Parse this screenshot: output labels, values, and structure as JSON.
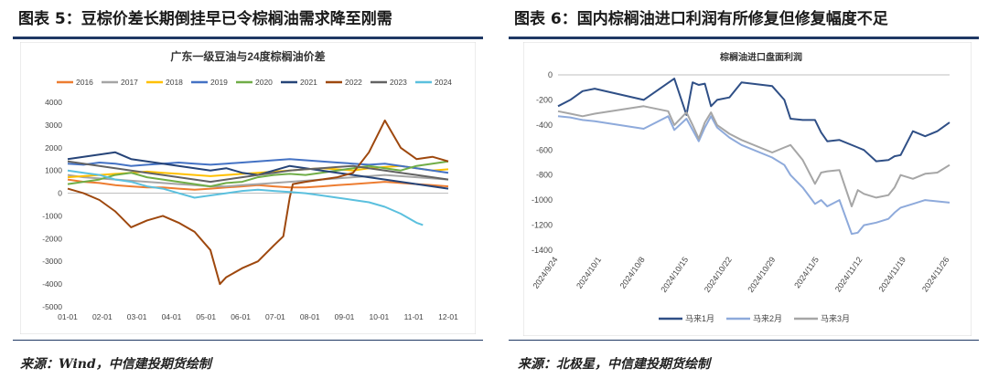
{
  "figure5": {
    "title": "图表 5：豆棕价差长期倒挂早已令棕榈油需求降至刚需",
    "source": "来源：Wind，中信建投期货绘制"
  },
  "figure6": {
    "title": "图表 6：国内棕榈油进口利润有所修复但修复幅度不足",
    "source": "来源：北极星，中信建投期货绘制"
  },
  "chart_data": [
    {
      "type": "line",
      "title": "广东一级豆油与24度棕榈油价差",
      "xlabel": "",
      "ylabel": "",
      "x_ticks": [
        "01-01",
        "02-01",
        "03-01",
        "04-01",
        "05-01",
        "06-01",
        "07-01",
        "08-01",
        "09-01",
        "10-01",
        "11-01",
        "12-01"
      ],
      "ylim": [
        -5000,
        4000
      ],
      "y_ticks": [
        "4000",
        "3000",
        "2000",
        "1000",
        "0",
        "-1000",
        "-2000",
        "-3000",
        "-4000",
        "-5000"
      ],
      "grid": false,
      "legend": "top",
      "x_domain": [
        0,
        12
      ],
      "series": [
        {
          "name": "2016",
          "color": "#ed7d31",
          "x": [
            0,
            0.5,
            1,
            1.5,
            2,
            2.5,
            3,
            3.5,
            4,
            4.5,
            5,
            5.5,
            6,
            6.5,
            7,
            7.5,
            8,
            8.5,
            9,
            9.5,
            10,
            10.5,
            11,
            11.5,
            12
          ],
          "values": [
            600,
            500,
            450,
            350,
            300,
            250,
            250,
            200,
            150,
            200,
            250,
            300,
            350,
            300,
            250,
            250,
            300,
            350,
            400,
            450,
            500,
            450,
            400,
            350,
            300
          ]
        },
        {
          "name": "2017",
          "color": "#a5a5a5",
          "x": [
            0,
            0.5,
            1,
            1.5,
            2,
            2.5,
            3,
            3.5,
            4,
            4.5,
            5,
            5.5,
            6,
            6.5,
            7,
            7.5,
            8,
            8.5,
            9,
            9.5,
            10,
            10.5,
            11,
            11.5,
            12
          ],
          "values": [
            800,
            700,
            650,
            600,
            550,
            500,
            450,
            400,
            350,
            300,
            300,
            350,
            400,
            450,
            500,
            550,
            600,
            650,
            700,
            750,
            800,
            750,
            700,
            650,
            600
          ]
        },
        {
          "name": "2018",
          "color": "#ffc000",
          "x": [
            0,
            0.5,
            1,
            1.5,
            2,
            2.5,
            3,
            3.5,
            4,
            4.5,
            5,
            5.5,
            6,
            6.5,
            7,
            7.5,
            8,
            8.5,
            9,
            9.5,
            10,
            10.5,
            11,
            11.5,
            12
          ],
          "values": [
            700,
            750,
            800,
            850,
            900,
            950,
            900,
            850,
            800,
            750,
            800,
            850,
            900,
            950,
            1000,
            1050,
            1100,
            1050,
            1000,
            1100,
            1150,
            1200,
            1100,
            1000,
            1050
          ]
        },
        {
          "name": "2019",
          "color": "#4472c4",
          "x": [
            0,
            0.5,
            1,
            1.5,
            2,
            2.5,
            3,
            3.5,
            4,
            4.5,
            5,
            5.5,
            6,
            6.5,
            7,
            7.5,
            8,
            8.5,
            9,
            9.5,
            10,
            10.5,
            11,
            11.5,
            12
          ],
          "values": [
            1300,
            1250,
            1350,
            1300,
            1200,
            1250,
            1300,
            1350,
            1300,
            1250,
            1300,
            1350,
            1400,
            1450,
            1500,
            1450,
            1400,
            1350,
            1300,
            1250,
            1300,
            1200,
            1100,
            1000,
            900
          ]
        },
        {
          "name": "2020",
          "color": "#70ad47",
          "x": [
            0,
            0.5,
            1,
            1.5,
            2,
            2.5,
            3,
            3.5,
            4,
            4.5,
            5,
            5.5,
            6,
            6.5,
            7,
            7.5,
            8,
            8.5,
            9,
            9.5,
            10,
            10.5,
            11,
            11.5,
            12
          ],
          "values": [
            400,
            500,
            600,
            800,
            900,
            700,
            600,
            500,
            400,
            300,
            450,
            500,
            700,
            800,
            850,
            800,
            900,
            1000,
            1100,
            1200,
            1100,
            1000,
            1200,
            1300,
            1400
          ]
        },
        {
          "name": "2021",
          "color": "#264478",
          "x": [
            0,
            0.5,
            1,
            1.5,
            2,
            2.5,
            3,
            3.5,
            4,
            4.5,
            5,
            5.5,
            6,
            6.5,
            7,
            7.5,
            8,
            8.5,
            9,
            9.5,
            10,
            10.5,
            11,
            11.5,
            12
          ],
          "values": [
            1500,
            1600,
            1700,
            1800,
            1500,
            1400,
            1300,
            1200,
            1100,
            1000,
            1100,
            900,
            800,
            1000,
            1200,
            1100,
            1000,
            900,
            800,
            700,
            600,
            500,
            400,
            300,
            200
          ]
        },
        {
          "name": "2022",
          "color": "#9e480e",
          "x": [
            0,
            0.5,
            1,
            1.5,
            2,
            2.5,
            3,
            3.5,
            4,
            4.5,
            4.8,
            5,
            5.5,
            6,
            6.5,
            6.8,
            7,
            7.1,
            7.5,
            8,
            8.5,
            9,
            9.5,
            10,
            10.5,
            11,
            11.5,
            12
          ],
          "values": [
            200,
            0,
            -300,
            -800,
            -1500,
            -1200,
            -1000,
            -1300,
            -1700,
            -2500,
            -4000,
            -3700,
            -3300,
            -3000,
            -2300,
            -1900,
            -200,
            400,
            500,
            600,
            700,
            900,
            1800,
            3200,
            2000,
            1500,
            1600,
            1400
          ]
        },
        {
          "name": "2023",
          "color": "#636363",
          "x": [
            0,
            0.5,
            1,
            1.5,
            2,
            2.5,
            3,
            3.5,
            4,
            4.5,
            5,
            5.5,
            6,
            6.5,
            7,
            7.5,
            8,
            8.5,
            9,
            9.5,
            10,
            10.5,
            11,
            11.5,
            12
          ],
          "values": [
            1400,
            1300,
            1200,
            1100,
            1000,
            900,
            800,
            700,
            600,
            500,
            600,
            700,
            800,
            900,
            1000,
            1050,
            1100,
            1150,
            1200,
            1100,
            1000,
            900,
            800,
            700,
            600
          ]
        },
        {
          "name": "2024",
          "color": "#5bc0de",
          "x": [
            0,
            0.5,
            1,
            1.5,
            2,
            2.5,
            3,
            3.5,
            4,
            4.5,
            5,
            5.5,
            6,
            6.5,
            7,
            7.5,
            8,
            8.5,
            9,
            9.5,
            10,
            10.5,
            11,
            11.2
          ],
          "values": [
            1000,
            900,
            800,
            600,
            500,
            300,
            200,
            0,
            -200,
            -100,
            0,
            100,
            150,
            100,
            50,
            0,
            -100,
            -200,
            -300,
            -400,
            -600,
            -900,
            -1300,
            -1400
          ]
        }
      ]
    },
    {
      "type": "line",
      "title": "棕榈油进口盘面利润",
      "xlabel": "",
      "ylabel": "",
      "x_ticks": [
        "2024/9/24",
        "2024/10/1",
        "2024/10/8",
        "2024/10/15",
        "2024/10/22",
        "2024/10/29",
        "2024/11/5",
        "2024/11/12",
        "2024/11/19",
        "2024/11/26"
      ],
      "ylim": [
        -1400,
        0
      ],
      "y_ticks": [
        "0",
        "-200",
        "-400",
        "-600",
        "-800",
        "-1000",
        "-1200",
        "-1400"
      ],
      "grid": false,
      "legend": "bottom",
      "x_domain": [
        0,
        64
      ],
      "series": [
        {
          "name": "马来1月",
          "color": "#2f4f86",
          "x": [
            0,
            2,
            4,
            6,
            14,
            19,
            21,
            22,
            23,
            24,
            25,
            26,
            28,
            30,
            35,
            37,
            38,
            40,
            42,
            43,
            44,
            46,
            49,
            50,
            52,
            54,
            55,
            56,
            58,
            60,
            62,
            64
          ],
          "values": [
            -250,
            -200,
            -130,
            -110,
            -200,
            -30,
            -320,
            -60,
            -80,
            -70,
            -250,
            -200,
            -180,
            -60,
            -90,
            -200,
            -350,
            -360,
            -360,
            -460,
            -530,
            -520,
            -580,
            -600,
            -690,
            -680,
            -650,
            -640,
            -450,
            -490,
            -450,
            -380
          ]
        },
        {
          "name": "马来2月",
          "color": "#8eaadb",
          "x": [
            0,
            2,
            4,
            6,
            14,
            18,
            19,
            21,
            22,
            23,
            24,
            25,
            26,
            28,
            30,
            35,
            37,
            38,
            40,
            42,
            43,
            44,
            46,
            48,
            49,
            50,
            52,
            54,
            55,
            56,
            58,
            60,
            62,
            64
          ],
          "values": [
            -330,
            -340,
            -360,
            -370,
            -430,
            -330,
            -440,
            -350,
            -440,
            -530,
            -420,
            -330,
            -420,
            -500,
            -560,
            -660,
            -720,
            -800,
            -900,
            -1030,
            -1000,
            -1050,
            -1000,
            -1270,
            -1260,
            -1200,
            -1180,
            -1150,
            -1100,
            -1060,
            -1030,
            -1000,
            -1010,
            -1020
          ]
        },
        {
          "name": "马来3月",
          "color": "#a6a6a6",
          "x": [
            0,
            2,
            4,
            6,
            14,
            18,
            19,
            21,
            22,
            23,
            24,
            25,
            26,
            28,
            30,
            35,
            37,
            38,
            40,
            42,
            43,
            44,
            46,
            48,
            49,
            50,
            52,
            54,
            55,
            56,
            58,
            60,
            62,
            64
          ],
          "values": [
            -290,
            -310,
            -330,
            -310,
            -250,
            -290,
            -400,
            -300,
            -400,
            -510,
            -380,
            -300,
            -400,
            -470,
            -520,
            -620,
            -580,
            -560,
            -680,
            -870,
            -780,
            -770,
            -760,
            -1050,
            -920,
            -950,
            -980,
            -960,
            -900,
            -800,
            -830,
            -790,
            -780,
            -720
          ]
        }
      ]
    }
  ]
}
